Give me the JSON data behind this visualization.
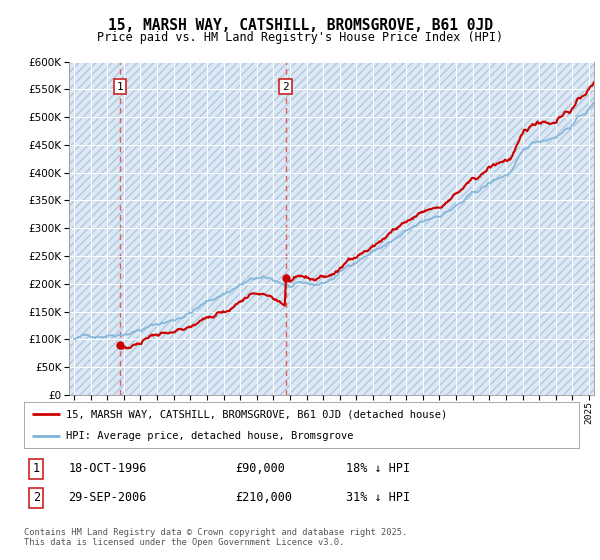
{
  "title": "15, MARSH WAY, CATSHILL, BROMSGROVE, B61 0JD",
  "subtitle": "Price paid vs. HM Land Registry's House Price Index (HPI)",
  "hpi_label": "HPI: Average price, detached house, Bromsgrove",
  "property_label": "15, MARSH WAY, CATSHILL, BROMSGROVE, B61 0JD (detached house)",
  "footer": "Contains HM Land Registry data © Crown copyright and database right 2025.\nThis data is licensed under the Open Government Licence v3.0.",
  "hpi_color": "#7fb3d9",
  "property_color": "#cc0000",
  "dashed_color": "#e06060",
  "marker_color": "#cc0000",
  "background_color": "#dce8f4",
  "grid_color": "#ffffff",
  "ylim": [
    0,
    600000
  ],
  "yticks": [
    0,
    50000,
    100000,
    150000,
    200000,
    250000,
    300000,
    350000,
    400000,
    450000,
    500000,
    550000,
    600000
  ],
  "xlim_start": 1993.7,
  "xlim_end": 2025.3,
  "sale1_x": 1996.79,
  "sale1_y": 90000,
  "sale1_date": "18-OCT-1996",
  "sale1_price": "£90,000",
  "sale1_hpi": "18% ↓ HPI",
  "sale2_x": 2006.74,
  "sale2_y": 210000,
  "sale2_date": "29-SEP-2006",
  "sale2_price": "£210,000",
  "sale2_hpi": "31% ↓ HPI"
}
